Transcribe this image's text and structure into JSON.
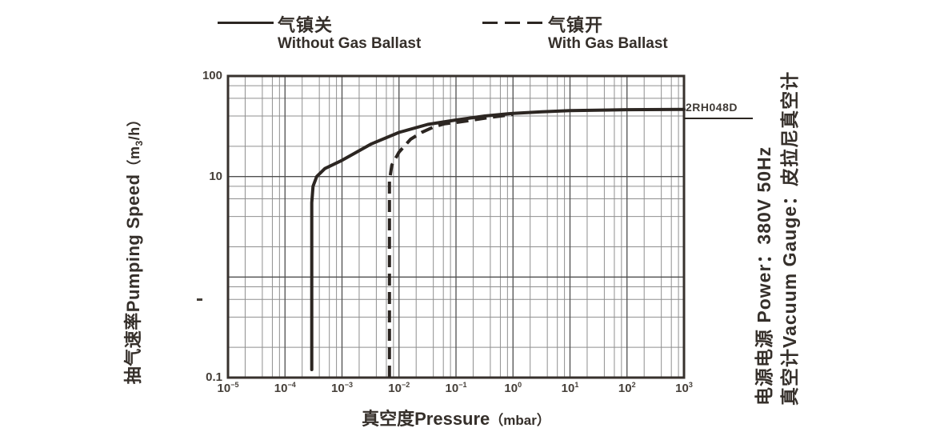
{
  "colors": {
    "ink": "#2c2622",
    "text": "#453f39",
    "grid_major": "#4f4f4f",
    "grid_minor": "#8f8f8f",
    "border": "#37312d",
    "background": "#ffffff"
  },
  "legend": [
    {
      "zh": "气镇关",
      "en": "Without Gas Ballast",
      "style": "solid"
    },
    {
      "zh": "气镇开",
      "en": "With Gas Ballast",
      "style": "dashed"
    }
  ],
  "axis_labels": {
    "y_main": "抽气速率Pumping Speed",
    "y_unit_open": "（m",
    "y_unit_digit": "3",
    "y_unit_close": "/h）",
    "x_main": "真空度Pressure",
    "x_unit": "（mbar）"
  },
  "side_notes": {
    "power": "电源电源 Power：380V 50Hz",
    "gauge": "真空计Vacuum Gauge：皮拉尼真空计"
  },
  "chart_data": {
    "type": "line",
    "title": "",
    "grid": true,
    "legend_position": "top",
    "annotation": {
      "model": "2RH048D"
    },
    "x_axis": {
      "label": "真空度Pressure（mbar）",
      "unit": "mbar",
      "scale": "log",
      "min": 1e-05,
      "max": 1000,
      "tick_exponents": [
        -5,
        -4,
        -3,
        -2,
        -1,
        0,
        1,
        2,
        3
      ]
    },
    "y_axis": {
      "label": "抽气速率Pumping Speed（m3/h）",
      "unit": "m3/h",
      "scale": "log",
      "min": 0.1,
      "max": 100,
      "ticks": [
        {
          "log": 2,
          "label": "100"
        },
        {
          "log": 1,
          "label": "10"
        },
        {
          "log": -1,
          "label": "0.1"
        }
      ]
    },
    "series": [
      {
        "name_zh": "气镇关",
        "name_en": "Without Gas Ballast",
        "line_style": "solid",
        "ultimate_pressure_mbar": 0.0003,
        "points": [
          [
            0.000295,
            0.12
          ],
          [
            0.000295,
            5.5
          ],
          [
            0.00031,
            8
          ],
          [
            0.00036,
            10
          ],
          [
            0.0005,
            12
          ],
          [
            0.001,
            14.5
          ],
          [
            0.0032,
            21
          ],
          [
            0.01,
            27.5
          ],
          [
            0.032,
            33
          ],
          [
            0.1,
            36.5
          ],
          [
            0.32,
            40
          ],
          [
            1,
            42.5
          ],
          [
            3.2,
            44
          ],
          [
            10,
            45.2
          ],
          [
            100,
            46.2
          ],
          [
            1000,
            46.6
          ]
        ]
      },
      {
        "name_zh": "气镇开",
        "name_en": "With Gas Ballast",
        "line_style": "dashed",
        "ultimate_pressure_mbar": 0.007,
        "points": [
          [
            0.0068,
            0.1
          ],
          [
            0.0068,
            9
          ],
          [
            0.0075,
            13
          ],
          [
            0.01,
            17.5
          ],
          [
            0.016,
            23.5
          ],
          [
            0.025,
            27.5
          ],
          [
            0.04,
            31
          ],
          [
            0.063,
            33.5
          ],
          [
            0.1,
            34.5
          ],
          [
            0.2,
            36.5
          ],
          [
            0.4,
            38.8
          ],
          [
            1,
            41.5
          ]
        ]
      }
    ]
  }
}
